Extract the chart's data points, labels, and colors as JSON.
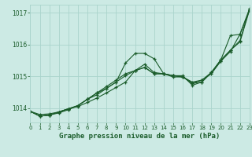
{
  "xlabel": "Graphe pression niveau de la mer (hPa)",
  "xlim": [
    0,
    23
  ],
  "ylim": [
    1013.55,
    1017.25
  ],
  "yticks": [
    1014,
    1015,
    1016,
    1017
  ],
  "xticks": [
    0,
    1,
    2,
    3,
    4,
    5,
    6,
    7,
    8,
    9,
    10,
    11,
    12,
    13,
    14,
    15,
    16,
    17,
    18,
    19,
    20,
    21,
    22,
    23
  ],
  "bg_color": "#cceae4",
  "grid_color": "#aad4cc",
  "line_color": "#1a5c2a",
  "series": [
    [
      1013.9,
      1013.8,
      1013.82,
      1013.88,
      1013.98,
      1014.05,
      1014.18,
      1014.32,
      1014.48,
      1014.65,
      1014.82,
      1015.18,
      1015.28,
      1015.08,
      1015.08,
      1014.98,
      1014.98,
      1014.82,
      1014.88,
      1015.12,
      1015.48,
      1015.78,
      1016.32,
      1017.08
    ],
    [
      1013.9,
      1013.75,
      1013.78,
      1013.85,
      1013.95,
      1014.08,
      1014.28,
      1014.42,
      1014.62,
      1014.82,
      1015.42,
      1015.72,
      1015.72,
      1015.55,
      1015.08,
      1015.02,
      1015.02,
      1014.72,
      1014.82,
      1015.12,
      1015.52,
      1016.28,
      1016.32,
      1017.12
    ],
    [
      1013.9,
      1013.75,
      1013.78,
      1013.88,
      1013.98,
      1014.08,
      1014.28,
      1014.48,
      1014.68,
      1014.88,
      1015.08,
      1015.18,
      1015.38,
      1015.12,
      1015.08,
      1015.02,
      1014.98,
      1014.78,
      1014.82,
      1015.12,
      1015.52,
      1015.82,
      1016.12,
      1017.12
    ],
    [
      1013.9,
      1013.75,
      1013.78,
      1013.88,
      1013.98,
      1014.08,
      1014.28,
      1014.48,
      1014.62,
      1014.82,
      1015.02,
      1015.18,
      1015.28,
      1015.08,
      1015.08,
      1015.02,
      1014.98,
      1014.78,
      1014.88,
      1015.08,
      1015.48,
      1015.82,
      1016.08,
      1017.08
    ]
  ]
}
